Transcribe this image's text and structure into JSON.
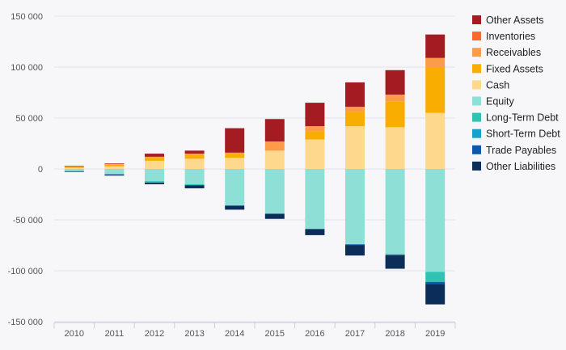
{
  "chart_data": {
    "type": "bar",
    "stacked": true,
    "categories": [
      "2010",
      "2011",
      "2012",
      "2013",
      "2014",
      "2015",
      "2016",
      "2017",
      "2018",
      "2019"
    ],
    "ylim": [
      -150000,
      150000
    ],
    "yticks": [
      150000,
      100000,
      50000,
      0,
      -50000,
      -100000,
      -150000
    ],
    "ytick_labels": [
      "150 000",
      "100 000",
      "50 000",
      "0",
      "-50 000",
      "-100 000",
      "-150 000"
    ],
    "grid": true,
    "legend_position": "right",
    "series": [
      {
        "name": "Cash",
        "color": "#fdd88d",
        "side": "positive",
        "values": [
          1000,
          2500,
          8000,
          10000,
          11000,
          18000,
          29000,
          42000,
          41000,
          55000
        ]
      },
      {
        "name": "Fixed Assets",
        "color": "#f9ad00",
        "side": "positive",
        "values": [
          1000,
          2000,
          3000,
          4000,
          4000,
          0,
          8000,
          14000,
          25000,
          45000
        ]
      },
      {
        "name": "Receivables",
        "color": "#fc9b4a",
        "side": "positive",
        "values": [
          500,
          500,
          1000,
          1000,
          1000,
          9000,
          5000,
          5000,
          7000,
          9000
        ]
      },
      {
        "name": "Inventories",
        "color": "#f96a2e",
        "side": "positive",
        "values": [
          0,
          0,
          0,
          0,
          0,
          0,
          0,
          0,
          0,
          0
        ]
      },
      {
        "name": "Other Assets",
        "color": "#a51b22",
        "side": "positive",
        "values": [
          500,
          500,
          3000,
          3000,
          24000,
          22000,
          23000,
          24000,
          24000,
          23000
        ]
      },
      {
        "name": "Equity",
        "color": "#8edfd6",
        "side": "negative",
        "values": [
          -2000,
          -5000,
          -12000,
          -15000,
          -36000,
          -44000,
          -59000,
          -74000,
          -84000,
          -101000
        ]
      },
      {
        "name": "Long-Term Debt",
        "color": "#2fc4b2",
        "side": "negative",
        "values": [
          -500,
          -500,
          -1500,
          -1000,
          0,
          0,
          0,
          0,
          0,
          -10000
        ]
      },
      {
        "name": "Short-Term Debt",
        "color": "#17a2c9",
        "side": "negative",
        "values": [
          0,
          0,
          0,
          0,
          0,
          0,
          0,
          0,
          0,
          0
        ]
      },
      {
        "name": "Trade Payables",
        "color": "#1157a8",
        "side": "negative",
        "values": [
          0,
          0,
          0,
          0,
          0,
          0,
          0,
          -1000,
          -1000,
          -2000
        ]
      },
      {
        "name": "Other Liabilities",
        "color": "#0b2d5a",
        "side": "negative",
        "values": [
          -500,
          -1000,
          -1500,
          -3000,
          -4000,
          -5000,
          -6000,
          -10000,
          -13000,
          -20000
        ]
      }
    ],
    "legend_order": [
      "Other Assets",
      "Inventories",
      "Receivables",
      "Fixed Assets",
      "Cash",
      "Equity",
      "Long-Term Debt",
      "Short-Term Debt",
      "Trade Payables",
      "Other Liabilities"
    ]
  }
}
